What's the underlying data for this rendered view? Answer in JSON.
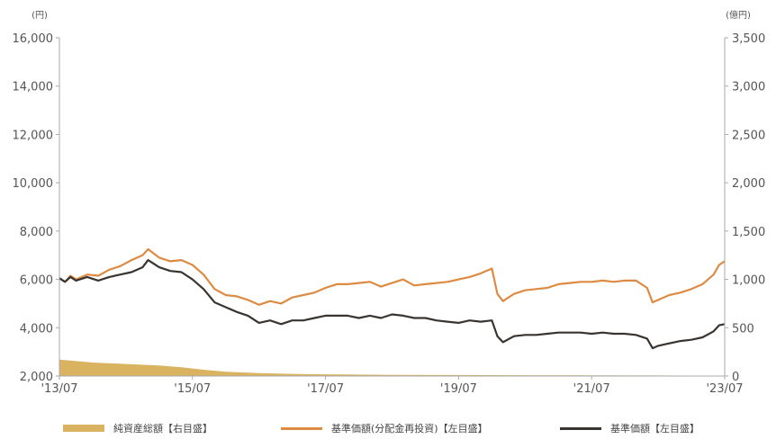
{
  "chart_data": {
    "type": "line",
    "left_unit": "(円)",
    "right_unit": "(億円)",
    "left_axis": {
      "min": 2000,
      "max": 16000,
      "ticks": [
        "2,000",
        "4,000",
        "6,000",
        "8,000",
        "10,000",
        "12,000",
        "14,000",
        "16,000"
      ]
    },
    "right_axis": {
      "min": 0,
      "max": 3500,
      "ticks": [
        "0",
        "500",
        "1,000",
        "1,500",
        "2,000",
        "2,500",
        "3,000",
        "3,500"
      ]
    },
    "x_ticks": [
      "'13/07",
      "'15/07",
      "'17/07",
      "'19/07",
      "'21/07",
      "'23/07"
    ],
    "x_tick_positions": [
      0,
      24,
      48,
      72,
      96,
      120
    ],
    "x_range": [
      0,
      120
    ],
    "colors": {
      "net_assets": "#D9B35F",
      "reinvested": "#DD8B43",
      "nav": "#3A3430"
    },
    "series": [
      {
        "name": "純資産総額【右目盛】",
        "type": "area",
        "axis": "right",
        "color": "#D9B35F",
        "points": [
          [
            0,
            170
          ],
          [
            6,
            140
          ],
          [
            12,
            125
          ],
          [
            18,
            110
          ],
          [
            22,
            90
          ],
          [
            26,
            65
          ],
          [
            30,
            45
          ],
          [
            36,
            30
          ],
          [
            42,
            22
          ],
          [
            48,
            18
          ],
          [
            60,
            12
          ],
          [
            72,
            10
          ],
          [
            84,
            8
          ],
          [
            96,
            7
          ],
          [
            108,
            6
          ],
          [
            120,
            5
          ]
        ]
      },
      {
        "name": "基準価額(分配金再投資)【左目盛】",
        "type": "line",
        "axis": "left",
        "color": "#DD8B43",
        "points": [
          [
            0,
            6050
          ],
          [
            1,
            5900
          ],
          [
            2,
            6150
          ],
          [
            3,
            6000
          ],
          [
            5,
            6200
          ],
          [
            7,
            6150
          ],
          [
            9,
            6400
          ],
          [
            11,
            6550
          ],
          [
            13,
            6800
          ],
          [
            15,
            7000
          ],
          [
            16,
            7250
          ],
          [
            18,
            6900
          ],
          [
            20,
            6750
          ],
          [
            22,
            6800
          ],
          [
            24,
            6600
          ],
          [
            26,
            6200
          ],
          [
            28,
            5600
          ],
          [
            30,
            5350
          ],
          [
            32,
            5300
          ],
          [
            34,
            5150
          ],
          [
            36,
            4950
          ],
          [
            38,
            5100
          ],
          [
            40,
            5000
          ],
          [
            42,
            5250
          ],
          [
            44,
            5350
          ],
          [
            46,
            5450
          ],
          [
            48,
            5650
          ],
          [
            50,
            5800
          ],
          [
            52,
            5800
          ],
          [
            54,
            5850
          ],
          [
            56,
            5900
          ],
          [
            58,
            5700
          ],
          [
            60,
            5850
          ],
          [
            62,
            6000
          ],
          [
            64,
            5750
          ],
          [
            66,
            5800
          ],
          [
            68,
            5850
          ],
          [
            70,
            5900
          ],
          [
            72,
            6000
          ],
          [
            74,
            6100
          ],
          [
            76,
            6250
          ],
          [
            78,
            6450
          ],
          [
            79,
            5400
          ],
          [
            80,
            5100
          ],
          [
            82,
            5400
          ],
          [
            84,
            5550
          ],
          [
            86,
            5600
          ],
          [
            88,
            5650
          ],
          [
            90,
            5800
          ],
          [
            92,
            5850
          ],
          [
            94,
            5900
          ],
          [
            96,
            5900
          ],
          [
            98,
            5950
          ],
          [
            100,
            5900
          ],
          [
            102,
            5950
          ],
          [
            104,
            5950
          ],
          [
            106,
            5650
          ],
          [
            107,
            5050
          ],
          [
            108,
            5150
          ],
          [
            110,
            5350
          ],
          [
            112,
            5450
          ],
          [
            114,
            5600
          ],
          [
            116,
            5800
          ],
          [
            118,
            6200
          ],
          [
            119,
            6600
          ],
          [
            120,
            6750
          ]
        ]
      },
      {
        "name": "基準価額【左目盛】",
        "type": "line",
        "axis": "left",
        "color": "#3A3430",
        "points": [
          [
            0,
            6050
          ],
          [
            1,
            5900
          ],
          [
            2,
            6100
          ],
          [
            3,
            5950
          ],
          [
            5,
            6100
          ],
          [
            7,
            5950
          ],
          [
            9,
            6100
          ],
          [
            11,
            6200
          ],
          [
            13,
            6300
          ],
          [
            15,
            6500
          ],
          [
            16,
            6800
          ],
          [
            18,
            6500
          ],
          [
            20,
            6350
          ],
          [
            22,
            6300
          ],
          [
            24,
            6000
          ],
          [
            26,
            5600
          ],
          [
            28,
            5050
          ],
          [
            30,
            4850
          ],
          [
            32,
            4650
          ],
          [
            34,
            4500
          ],
          [
            36,
            4200
          ],
          [
            38,
            4300
          ],
          [
            40,
            4150
          ],
          [
            42,
            4300
          ],
          [
            44,
            4300
          ],
          [
            46,
            4400
          ],
          [
            48,
            4500
          ],
          [
            50,
            4500
          ],
          [
            52,
            4500
          ],
          [
            54,
            4400
          ],
          [
            56,
            4500
          ],
          [
            58,
            4400
          ],
          [
            60,
            4550
          ],
          [
            62,
            4500
          ],
          [
            64,
            4400
          ],
          [
            66,
            4400
          ],
          [
            68,
            4300
          ],
          [
            70,
            4250
          ],
          [
            72,
            4200
          ],
          [
            74,
            4300
          ],
          [
            76,
            4250
          ],
          [
            78,
            4300
          ],
          [
            79,
            3650
          ],
          [
            80,
            3400
          ],
          [
            82,
            3650
          ],
          [
            84,
            3700
          ],
          [
            86,
            3700
          ],
          [
            88,
            3750
          ],
          [
            90,
            3800
          ],
          [
            92,
            3800
          ],
          [
            94,
            3800
          ],
          [
            96,
            3750
          ],
          [
            98,
            3800
          ],
          [
            100,
            3750
          ],
          [
            102,
            3750
          ],
          [
            104,
            3700
          ],
          [
            106,
            3550
          ],
          [
            107,
            3150
          ],
          [
            108,
            3250
          ],
          [
            110,
            3350
          ],
          [
            112,
            3450
          ],
          [
            114,
            3500
          ],
          [
            116,
            3600
          ],
          [
            118,
            3850
          ],
          [
            119,
            4100
          ],
          [
            120,
            4150
          ]
        ]
      }
    ]
  },
  "legend": [
    {
      "label": "純資産総額【右目盛】",
      "kind": "area",
      "color": "#D9B35F"
    },
    {
      "label": "基準価額(分配金再投資)【左目盛】",
      "kind": "line",
      "color": "#DD8B43"
    },
    {
      "label": "基準価額【左目盛】",
      "kind": "line",
      "color": "#3A3430"
    }
  ]
}
